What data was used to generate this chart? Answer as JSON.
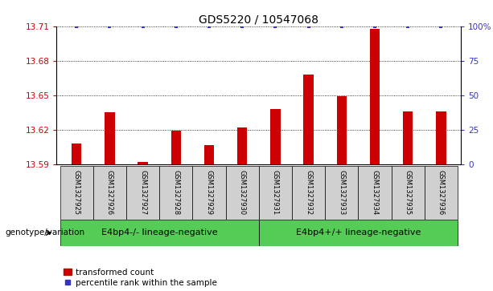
{
  "title": "GDS5220 / 10547068",
  "samples": [
    "GSM1327925",
    "GSM1327926",
    "GSM1327927",
    "GSM1327928",
    "GSM1327929",
    "GSM1327930",
    "GSM1327931",
    "GSM1327932",
    "GSM1327933",
    "GSM1327934",
    "GSM1327935",
    "GSM1327936"
  ],
  "bar_values": [
    13.608,
    13.635,
    13.592,
    13.619,
    13.607,
    13.622,
    13.638,
    13.668,
    13.649,
    13.708,
    13.636,
    13.636
  ],
  "percentile_values": [
    100,
    100,
    100,
    100,
    100,
    100,
    100,
    100,
    100,
    100,
    100,
    100
  ],
  "bar_color": "#cc0000",
  "percentile_color": "#3333cc",
  "ylim_left": [
    13.59,
    13.71
  ],
  "ylim_right": [
    0,
    100
  ],
  "yticks_left": [
    13.59,
    13.62,
    13.65,
    13.68,
    13.71
  ],
  "ytick_labels_left": [
    "13.59",
    "13.62",
    "13.65",
    "13.68",
    "13.71"
  ],
  "yticks_right": [
    0,
    25,
    50,
    75,
    100
  ],
  "ytick_labels_right": [
    "0",
    "25",
    "50",
    "75",
    "100%"
  ],
  "group1_label": "E4bp4-/- lineage-negative",
  "group2_label": "E4bp4+/+ lineage-negative",
  "group1_indices": [
    0,
    1,
    2,
    3,
    4,
    5
  ],
  "group2_indices": [
    6,
    7,
    8,
    9,
    10,
    11
  ],
  "group_color": "#55cc55",
  "group_label_prefix": "genotype/variation",
  "legend_bar_label": "transformed count",
  "legend_dot_label": "percentile rank within the sample",
  "bar_bottom": 13.59,
  "title_fontsize": 10,
  "tick_fontsize": 7.5,
  "sample_fontsize": 6,
  "group_fontsize": 8,
  "legend_fontsize": 7.5,
  "bar_width": 0.3
}
